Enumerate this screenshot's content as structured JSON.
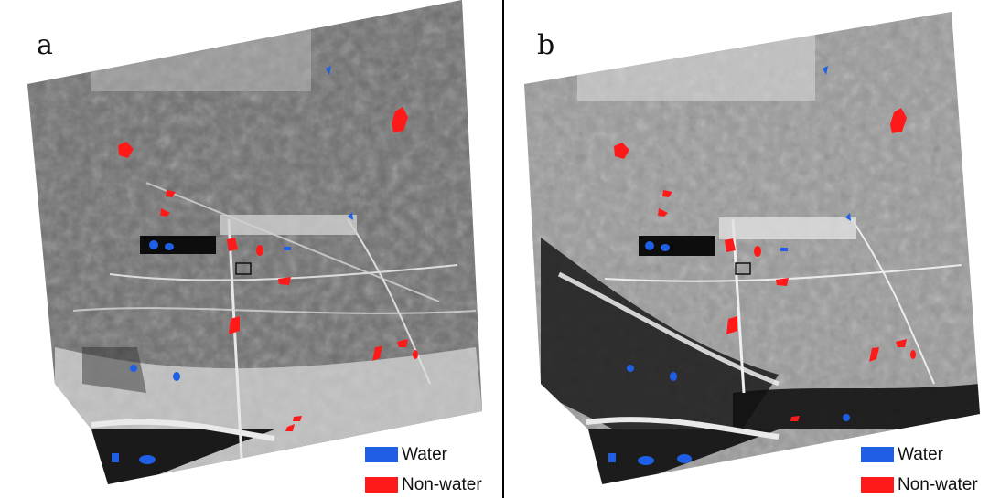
{
  "panels": [
    {
      "letter": "a"
    },
    {
      "letter": "b"
    }
  ],
  "legend": {
    "water": "Water",
    "non_water": "Non-water"
  },
  "colors": {
    "water": "#1f5fe6",
    "non_water": "#ff1a1a"
  }
}
